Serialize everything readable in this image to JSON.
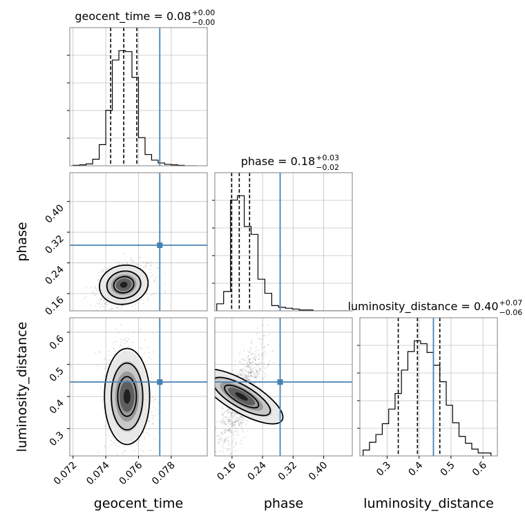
{
  "figure": {
    "type": "corner-plot"
  },
  "chart_data": {
    "type": "corner",
    "parameters": [
      "geocent_time",
      "phase",
      "luminosity_distance"
    ],
    "truths": {
      "geocent_time": 0.0773,
      "phase": 0.286,
      "luminosity_distance": 0.445
    },
    "titles": [
      {
        "parameter": "geocent_time",
        "text": "geocent_time = 0.08",
        "sup": "+0.00",
        "sub": "−0.00"
      },
      {
        "parameter": "phase",
        "text": "phase = 0.18",
        "sup": "+0.03",
        "sub": "−0.02"
      },
      {
        "parameter": "luminosity_distance",
        "text": "luminosity_distance = 0.40",
        "sup": "+0.07",
        "sub": "−0.06"
      }
    ],
    "axis_labels": {
      "geocent_time": "geocent_time",
      "phase": "phase",
      "luminosity_distance": "luminosity_distance"
    },
    "ranges": {
      "geocent_time": [
        0.0718,
        0.0802
      ],
      "phase": [
        0.115,
        0.475
      ],
      "luminosity_distance": [
        0.215,
        0.645
      ]
    },
    "ticks": {
      "geocent_time": [
        "0.072",
        "0.074",
        "0.076",
        "0.078"
      ],
      "phase": [
        "0.16",
        "0.24",
        "0.32",
        "0.40"
      ],
      "luminosity_distance": [
        "0.3",
        "0.4",
        "0.5",
        "0.6"
      ]
    },
    "marginals": [
      {
        "parameter": "geocent_time",
        "bin_edges": [
          0.072,
          0.0724,
          0.0728,
          0.0732,
          0.0736,
          0.074,
          0.0744,
          0.0748,
          0.0752,
          0.0756,
          0.076,
          0.0764,
          0.0768,
          0.0772,
          0.0776,
          0.078,
          0.0784,
          0.0788,
          0.0792,
          0.0796
        ],
        "counts": [
          1,
          2,
          4,
          14,
          45,
          118,
          225,
          245,
          243,
          188,
          60,
          24,
          12,
          6,
          3,
          2,
          1,
          0,
          0
        ],
        "quantiles": [
          0.0743,
          0.0751,
          0.0759
        ]
      },
      {
        "parameter": "phase",
        "bin_edges": [
          0.12,
          0.138,
          0.156,
          0.174,
          0.192,
          0.21,
          0.228,
          0.246,
          0.264,
          0.282,
          0.3,
          0.318,
          0.336,
          0.354,
          0.372,
          0.39,
          0.408,
          0.426,
          0.444,
          0.462
        ],
        "counts": [
          8,
          22,
          126,
          131,
          96,
          87,
          36,
          20,
          6,
          4,
          3,
          2,
          1,
          1,
          0,
          0,
          0,
          0,
          0
        ],
        "quantiles": [
          0.159,
          0.179,
          0.206
        ]
      },
      {
        "parameter": "luminosity_distance",
        "bin_edges": [
          0.225,
          0.245,
          0.265,
          0.285,
          0.305,
          0.325,
          0.345,
          0.365,
          0.385,
          0.405,
          0.425,
          0.445,
          0.465,
          0.485,
          0.505,
          0.525,
          0.545,
          0.565,
          0.585,
          0.605,
          0.625
        ],
        "counts": [
          6,
          14,
          22,
          33,
          48,
          64,
          88,
          107,
          118,
          115,
          106,
          93,
          76,
          52,
          34,
          20,
          13,
          7,
          3,
          3
        ],
        "quantiles": [
          0.335,
          0.395,
          0.465
        ]
      }
    ],
    "joint_2d": [
      {
        "x": "geocent_time",
        "y": "phase",
        "center": [
          0.0751,
          0.183
        ],
        "spread": [
          0.00065,
          0.022
        ],
        "correlation": 0.25,
        "levels": 3
      },
      {
        "x": "geocent_time",
        "y": "luminosity_distance",
        "center": [
          0.0753,
          0.4
        ],
        "spread": [
          0.0006,
          0.065
        ],
        "correlation": 0.0,
        "levels": 3
      },
      {
        "x": "phase",
        "y": "luminosity_distance",
        "center": [
          0.185,
          0.4
        ],
        "spread": [
          0.024,
          0.065
        ],
        "correlation": 0.75,
        "levels": 3
      }
    ],
    "colors": {
      "truth": "#4682b4",
      "histogram": "#000000",
      "grid": "#c0c0c0",
      "frame": "#808080"
    }
  }
}
